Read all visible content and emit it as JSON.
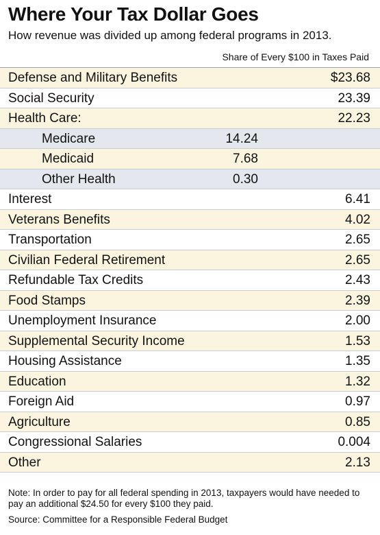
{
  "header": {
    "title": "Where Your Tax Dollar Goes",
    "subtitle": "How revenue was divided up among federal programs in 2013.",
    "column_label": "Share of Every $100 in Taxes Paid"
  },
  "colors": {
    "row_yellow": "#fbf5e0",
    "row_blue": "#e4e8ee",
    "row_white": "#ffffff"
  },
  "chart_data": {
    "type": "table",
    "title": "Where Your Tax Dollar Goes",
    "subtitle": "How revenue was divided up among federal programs in 2013.",
    "columns": [
      "",
      "Share of Every $100 in Taxes Paid"
    ],
    "rows": [
      {
        "label": "Defense and Military Benefits",
        "value": "$23.68",
        "level": 0,
        "shade": "yellow"
      },
      {
        "label": "Social Security",
        "value": "23.39",
        "level": 0,
        "shade": "white"
      },
      {
        "label": "Health Care:",
        "value": "22.23",
        "level": 0,
        "shade": "yellow"
      },
      {
        "label": "Medicare",
        "value": "14.24",
        "level": 1,
        "shade": "blue"
      },
      {
        "label": "Medicaid",
        "value": "7.68",
        "level": 1,
        "shade": "yellow"
      },
      {
        "label": "Other Health",
        "value": "0.30",
        "level": 1,
        "shade": "blue"
      },
      {
        "label": "Interest",
        "value": "6.41",
        "level": 0,
        "shade": "white"
      },
      {
        "label": "Veterans Benefits",
        "value": "4.02",
        "level": 0,
        "shade": "yellow"
      },
      {
        "label": "Transportation",
        "value": "2.65",
        "level": 0,
        "shade": "white"
      },
      {
        "label": "Civilian Federal Retirement",
        "value": "2.65",
        "level": 0,
        "shade": "yellow"
      },
      {
        "label": "Refundable Tax Credits",
        "value": "2.43",
        "level": 0,
        "shade": "white"
      },
      {
        "label": "Food Stamps",
        "value": "2.39",
        "level": 0,
        "shade": "yellow"
      },
      {
        "label": "Unemployment Insurance",
        "value": "2.00",
        "level": 0,
        "shade": "white"
      },
      {
        "label": "Supplemental Security Income",
        "value": "1.53",
        "level": 0,
        "shade": "yellow"
      },
      {
        "label": "Housing Assistance",
        "value": "1.35",
        "level": 0,
        "shade": "white"
      },
      {
        "label": "Education",
        "value": "1.32",
        "level": 0,
        "shade": "yellow"
      },
      {
        "label": "Foreign Aid",
        "value": "0.97",
        "level": 0,
        "shade": "white"
      },
      {
        "label": "Agriculture",
        "value": "0.85",
        "level": 0,
        "shade": "yellow"
      },
      {
        "label": "Congressional Salaries",
        "value": "0.004",
        "level": 0,
        "shade": "white"
      },
      {
        "label": "Other",
        "value": "2.13",
        "level": 0,
        "shade": "yellow"
      }
    ]
  },
  "footer": {
    "note": "Note: In order to pay for all federal spending in 2013, taxpayers would have needed to pay an additional $24.50 for every $100 they paid.",
    "source": "Source: Committee for a Responsible Federal Budget"
  }
}
